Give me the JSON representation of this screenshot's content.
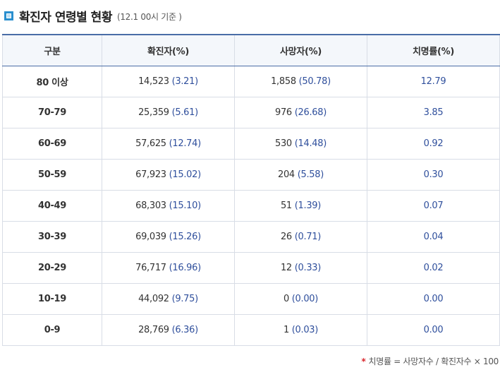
{
  "header": {
    "title": "확진자 연령별 현황",
    "subtitle": "(12.1 00시 기준 )",
    "icon": "square-bullet-icon",
    "accent_color": "#2a8fcf"
  },
  "table": {
    "columns": [
      "구분",
      "확진자(%)",
      "사망자(%)",
      "치명률(%)"
    ],
    "rows": [
      {
        "group": "80 이상",
        "cases": "14,523",
        "cases_pct": "(3.21)",
        "deaths": "1,858",
        "deaths_pct": "(50.78)",
        "fatality": "12.79"
      },
      {
        "group": "70-79",
        "cases": "25,359",
        "cases_pct": "(5.61)",
        "deaths": "976",
        "deaths_pct": "(26.68)",
        "fatality": "3.85"
      },
      {
        "group": "60-69",
        "cases": "57,625",
        "cases_pct": "(12.74)",
        "deaths": "530",
        "deaths_pct": "(14.48)",
        "fatality": "0.92"
      },
      {
        "group": "50-59",
        "cases": "67,923",
        "cases_pct": "(15.02)",
        "deaths": "204",
        "deaths_pct": "(5.58)",
        "fatality": "0.30"
      },
      {
        "group": "40-49",
        "cases": "68,303",
        "cases_pct": "(15.10)",
        "deaths": "51",
        "deaths_pct": "(1.39)",
        "fatality": "0.07"
      },
      {
        "group": "30-39",
        "cases": "69,039",
        "cases_pct": "(15.26)",
        "deaths": "26",
        "deaths_pct": "(0.71)",
        "fatality": "0.04"
      },
      {
        "group": "20-29",
        "cases": "76,717",
        "cases_pct": "(16.96)",
        "deaths": "12",
        "deaths_pct": "(0.33)",
        "fatality": "0.02"
      },
      {
        "group": "10-19",
        "cases": "44,092",
        "cases_pct": "(9.75)",
        "deaths": "0",
        "deaths_pct": "(0.00)",
        "fatality": "0.00"
      },
      {
        "group": "0-9",
        "cases": "28,769",
        "cases_pct": "(6.36)",
        "deaths": "1",
        "deaths_pct": "(0.03)",
        "fatality": "0.00"
      }
    ]
  },
  "footnote": {
    "marker": "*",
    "text": "치명률 = 사망자수 / 확진자수 × 100"
  }
}
